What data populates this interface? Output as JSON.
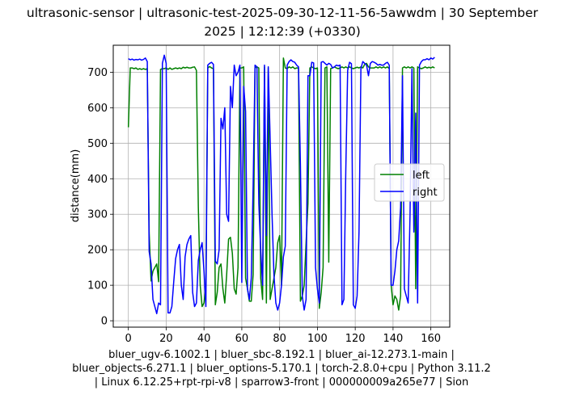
{
  "chart_data": {
    "type": "line",
    "title_lines": [
      "ultrasonic-sensor | ultrasonic-test-2025-09-30-12-11-56-5awwdm | 30 September",
      "2025 | 12:12:39 (+0330)"
    ],
    "xlabel_lines": [
      "bluer_ugv-6.1002.1 | bluer_sbc-8.192.1 | bluer_ai-12.273.1-main |",
      "bluer_objects-6.271.1 | bluer_options-5.170.1 | torch-2.8.0+cpu | Python 3.11.2",
      "| Linux 6.12.25+rpt-rpi-v8 | sparrow3-front | 000000009a265e77 | Sion"
    ],
    "ylabel": "distance(mm)",
    "xlim": [
      -8,
      170
    ],
    "ylim": [
      -18,
      776
    ],
    "xticks": [
      0,
      20,
      40,
      60,
      80,
      100,
      120,
      140,
      160
    ],
    "yticks": [
      0,
      100,
      200,
      300,
      400,
      500,
      600,
      700
    ],
    "grid": true,
    "legend": {
      "placement": "center-right"
    },
    "series": [
      {
        "name": "left",
        "color": "#008000",
        "points": [
          [
            0,
            545
          ],
          [
            1,
            712
          ],
          [
            2,
            712
          ],
          [
            3,
            710
          ],
          [
            4,
            712
          ],
          [
            5,
            708
          ],
          [
            6,
            710
          ],
          [
            7,
            708
          ],
          [
            8,
            710
          ],
          [
            9,
            708
          ],
          [
            10,
            710
          ],
          [
            11,
            250
          ],
          [
            12,
            112
          ],
          [
            13,
            140
          ],
          [
            14,
            150
          ],
          [
            15,
            160
          ],
          [
            16,
            110
          ],
          [
            17,
            708
          ],
          [
            18,
            710
          ],
          [
            19,
            710
          ],
          [
            20,
            712
          ],
          [
            21,
            708
          ],
          [
            22,
            712
          ],
          [
            23,
            708
          ],
          [
            24,
            710
          ],
          [
            25,
            712
          ],
          [
            26,
            710
          ],
          [
            27,
            712
          ],
          [
            28,
            710
          ],
          [
            29,
            714
          ],
          [
            30,
            712
          ],
          [
            31,
            714
          ],
          [
            32,
            712
          ],
          [
            33,
            712
          ],
          [
            34,
            714
          ],
          [
            35,
            715
          ],
          [
            36,
            705
          ],
          [
            37,
            320
          ],
          [
            38,
            100
          ],
          [
            39,
            40
          ],
          [
            40,
            50
          ],
          [
            41,
            100
          ],
          [
            42,
            712
          ],
          [
            43,
            716
          ],
          [
            44,
            712
          ],
          [
            45,
            710
          ],
          [
            46,
            45
          ],
          [
            47,
            80
          ],
          [
            48,
            150
          ],
          [
            49,
            160
          ],
          [
            50,
            90
          ],
          [
            51,
            50
          ],
          [
            52,
            130
          ],
          [
            53,
            230
          ],
          [
            54,
            235
          ],
          [
            55,
            190
          ],
          [
            56,
            90
          ],
          [
            57,
            75
          ],
          [
            58,
            150
          ],
          [
            59,
            712
          ],
          [
            60,
            712
          ],
          [
            61,
            715
          ],
          [
            62,
            120
          ],
          [
            63,
            90
          ],
          [
            64,
            55
          ],
          [
            65,
            55
          ],
          [
            66,
            130
          ],
          [
            67,
            712
          ],
          [
            68,
            715
          ],
          [
            69,
            712
          ],
          [
            70,
            120
          ],
          [
            71,
            60
          ],
          [
            72,
            715
          ],
          [
            73,
            50
          ],
          [
            74,
            712
          ],
          [
            75,
            60
          ],
          [
            76,
            90
          ],
          [
            77,
            120
          ],
          [
            78,
            150
          ],
          [
            79,
            220
          ],
          [
            80,
            240
          ],
          [
            81,
            100
          ],
          [
            82,
            740
          ],
          [
            83,
            712
          ],
          [
            84,
            710
          ],
          [
            85,
            715
          ],
          [
            86,
            712
          ],
          [
            87,
            715
          ],
          [
            88,
            710
          ],
          [
            89,
            712
          ],
          [
            90,
            712
          ],
          [
            91,
            55
          ],
          [
            92,
            70
          ],
          [
            93,
            100
          ],
          [
            94,
            220
          ],
          [
            95,
            330
          ],
          [
            96,
            712
          ],
          [
            97,
            715
          ],
          [
            98,
            712
          ],
          [
            99,
            710
          ],
          [
            100,
            712
          ],
          [
            101,
            35
          ],
          [
            102,
            80
          ],
          [
            103,
            150
          ],
          [
            104,
            712
          ],
          [
            105,
            715
          ],
          [
            106,
            165
          ],
          [
            107,
            710
          ],
          [
            108,
            712
          ],
          [
            109,
            715
          ],
          [
            110,
            712
          ],
          [
            111,
            710
          ],
          [
            112,
            712
          ],
          [
            113,
            715
          ],
          [
            114,
            712
          ],
          [
            115,
            715
          ],
          [
            116,
            712
          ],
          [
            117,
            715
          ],
          [
            118,
            712
          ],
          [
            119,
            710
          ],
          [
            120,
            712
          ],
          [
            121,
            714
          ],
          [
            122,
            712
          ],
          [
            123,
            715
          ],
          [
            124,
            712
          ],
          [
            125,
            722
          ],
          [
            126,
            725
          ],
          [
            127,
            715
          ],
          [
            128,
            712
          ],
          [
            129,
            712
          ],
          [
            130,
            712
          ],
          [
            131,
            715
          ],
          [
            132,
            712
          ],
          [
            133,
            715
          ],
          [
            134,
            712
          ],
          [
            135,
            715
          ],
          [
            136,
            712
          ],
          [
            137,
            715
          ],
          [
            138,
            710
          ],
          [
            139,
            100
          ],
          [
            140,
            45
          ],
          [
            141,
            70
          ],
          [
            142,
            60
          ],
          [
            143,
            30
          ],
          [
            144,
            70
          ],
          [
            145,
            712
          ],
          [
            146,
            715
          ],
          [
            147,
            712
          ],
          [
            148,
            715
          ],
          [
            149,
            712
          ],
          [
            150,
            715
          ],
          [
            151,
            712
          ],
          [
            152,
            90
          ],
          [
            153,
            715
          ],
          [
            154,
            712
          ],
          [
            155,
            710
          ],
          [
            156,
            712
          ],
          [
            157,
            715
          ],
          [
            158,
            712
          ],
          [
            159,
            714
          ],
          [
            160,
            712
          ],
          [
            161,
            715
          ],
          [
            162,
            712
          ]
        ]
      },
      {
        "name": "right",
        "color": "#0000ff",
        "points": [
          [
            0,
            738
          ],
          [
            1,
            735
          ],
          [
            2,
            737
          ],
          [
            3,
            734
          ],
          [
            4,
            736
          ],
          [
            5,
            735
          ],
          [
            6,
            737
          ],
          [
            7,
            734
          ],
          [
            8,
            736
          ],
          [
            9,
            740
          ],
          [
            10,
            730
          ],
          [
            11,
            195
          ],
          [
            12,
            160
          ],
          [
            13,
            60
          ],
          [
            14,
            40
          ],
          [
            15,
            20
          ],
          [
            16,
            50
          ],
          [
            17,
            45
          ],
          [
            18,
            725
          ],
          [
            19,
            748
          ],
          [
            20,
            725
          ],
          [
            21,
            22
          ],
          [
            22,
            22
          ],
          [
            23,
            40
          ],
          [
            24,
            110
          ],
          [
            25,
            175
          ],
          [
            26,
            200
          ],
          [
            27,
            215
          ],
          [
            28,
            100
          ],
          [
            29,
            60
          ],
          [
            30,
            180
          ],
          [
            31,
            215
          ],
          [
            32,
            230
          ],
          [
            33,
            240
          ],
          [
            34,
            80
          ],
          [
            35,
            40
          ],
          [
            36,
            50
          ],
          [
            37,
            170
          ],
          [
            38,
            200
          ],
          [
            39,
            220
          ],
          [
            40,
            140
          ],
          [
            41,
            40
          ],
          [
            42,
            720
          ],
          [
            43,
            725
          ],
          [
            44,
            728
          ],
          [
            45,
            722
          ],
          [
            46,
            168
          ],
          [
            47,
            160
          ],
          [
            48,
            200
          ],
          [
            49,
            570
          ],
          [
            50,
            540
          ],
          [
            51,
            600
          ],
          [
            52,
            300
          ],
          [
            53,
            280
          ],
          [
            54,
            660
          ],
          [
            55,
            600
          ],
          [
            56,
            720
          ],
          [
            57,
            690
          ],
          [
            58,
            700
          ],
          [
            59,
            720
          ],
          [
            60,
            108
          ],
          [
            61,
            660
          ],
          [
            62,
            590
          ],
          [
            63,
            90
          ],
          [
            64,
            60
          ],
          [
            65,
            120
          ],
          [
            66,
            380
          ],
          [
            67,
            720
          ],
          [
            68,
            715
          ],
          [
            69,
            330
          ],
          [
            70,
            200
          ],
          [
            71,
            100
          ],
          [
            72,
            720
          ],
          [
            73,
            240
          ],
          [
            74,
            715
          ],
          [
            75,
            510
          ],
          [
            76,
            300
          ],
          [
            77,
            130
          ],
          [
            78,
            50
          ],
          [
            79,
            30
          ],
          [
            80,
            50
          ],
          [
            81,
            100
          ],
          [
            82,
            180
          ],
          [
            83,
            210
          ],
          [
            84,
            720
          ],
          [
            85,
            730
          ],
          [
            86,
            735
          ],
          [
            87,
            730
          ],
          [
            88,
            728
          ],
          [
            89,
            720
          ],
          [
            90,
            715
          ],
          [
            91,
            440
          ],
          [
            92,
            70
          ],
          [
            93,
            30
          ],
          [
            94,
            60
          ],
          [
            95,
            690
          ],
          [
            96,
            690
          ],
          [
            97,
            728
          ],
          [
            98,
            726
          ],
          [
            99,
            150
          ],
          [
            100,
            90
          ],
          [
            101,
            50
          ],
          [
            102,
            728
          ],
          [
            103,
            730
          ],
          [
            104,
            725
          ],
          [
            105,
            720
          ],
          [
            106,
            725
          ],
          [
            107,
            722
          ],
          [
            108,
            712
          ],
          [
            109,
            715
          ],
          [
            110,
            720
          ],
          [
            111,
            718
          ],
          [
            112,
            720
          ],
          [
            113,
            45
          ],
          [
            114,
            60
          ],
          [
            115,
            420
          ],
          [
            116,
            705
          ],
          [
            117,
            728
          ],
          [
            118,
            724
          ],
          [
            119,
            45
          ],
          [
            120,
            35
          ],
          [
            121,
            70
          ],
          [
            122,
            250
          ],
          [
            123,
            710
          ],
          [
            124,
            730
          ],
          [
            125,
            725
          ],
          [
            126,
            720
          ],
          [
            127,
            690
          ],
          [
            128,
            725
          ],
          [
            129,
            730
          ],
          [
            130,
            728
          ],
          [
            131,
            725
          ],
          [
            132,
            720
          ],
          [
            133,
            722
          ],
          [
            134,
            720
          ],
          [
            135,
            720
          ],
          [
            136,
            725
          ],
          [
            137,
            728
          ],
          [
            138,
            720
          ],
          [
            139,
            100
          ],
          [
            140,
            100
          ],
          [
            141,
            140
          ],
          [
            142,
            200
          ],
          [
            143,
            225
          ],
          [
            144,
            320
          ],
          [
            145,
            690
          ],
          [
            146,
            90
          ],
          [
            147,
            70
          ],
          [
            148,
            50
          ],
          [
            149,
            300
          ],
          [
            150,
            710
          ],
          [
            151,
            250
          ],
          [
            152,
            585
          ],
          [
            153,
            50
          ],
          [
            154,
            720
          ],
          [
            155,
            730
          ],
          [
            156,
            735
          ],
          [
            157,
            735
          ],
          [
            158,
            738
          ],
          [
            159,
            735
          ],
          [
            160,
            740
          ],
          [
            161,
            737
          ],
          [
            162,
            742
          ]
        ]
      }
    ]
  }
}
